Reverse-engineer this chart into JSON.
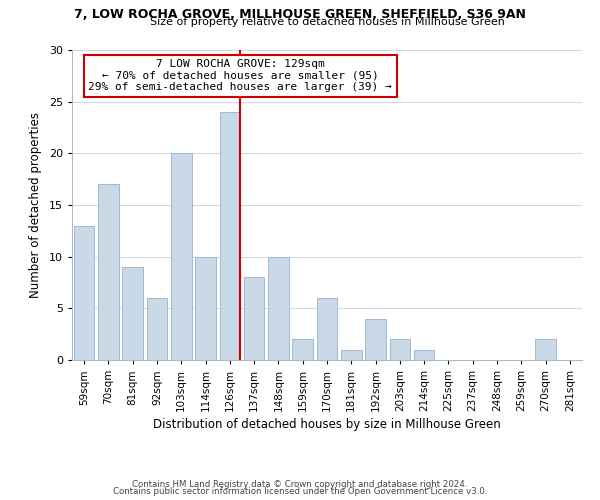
{
  "title_line1": "7, LOW ROCHA GROVE, MILLHOUSE GREEN, SHEFFIELD, S36 9AN",
  "title_line2": "Size of property relative to detached houses in Millhouse Green",
  "xlabel": "Distribution of detached houses by size in Millhouse Green",
  "ylabel": "Number of detached properties",
  "bar_labels": [
    "59sqm",
    "70sqm",
    "81sqm",
    "92sqm",
    "103sqm",
    "114sqm",
    "126sqm",
    "137sqm",
    "148sqm",
    "159sqm",
    "170sqm",
    "181sqm",
    "192sqm",
    "203sqm",
    "214sqm",
    "225sqm",
    "237sqm",
    "248sqm",
    "259sqm",
    "270sqm",
    "281sqm"
  ],
  "bar_heights": [
    13,
    17,
    9,
    6,
    20,
    10,
    24,
    8,
    10,
    2,
    6,
    1,
    4,
    2,
    1,
    0,
    0,
    0,
    0,
    2,
    0
  ],
  "bar_color": "#c9d9e8",
  "bar_edge_color": "#a0b8d0",
  "highlight_index": 6,
  "highlight_line_color": "#cc0000",
  "annotation_box_text": "7 LOW ROCHA GROVE: 129sqm\n← 70% of detached houses are smaller (95)\n29% of semi-detached houses are larger (39) →",
  "annotation_box_color": "#ffffff",
  "annotation_box_edge_color": "#cc0000",
  "ylim": [
    0,
    30
  ],
  "yticks": [
    0,
    5,
    10,
    15,
    20,
    25,
    30
  ],
  "footer_line1": "Contains HM Land Registry data © Crown copyright and database right 2024.",
  "footer_line2": "Contains public sector information licensed under the Open Government Licence v3.0.",
  "background_color": "#ffffff",
  "grid_color": "#d0d8e0"
}
